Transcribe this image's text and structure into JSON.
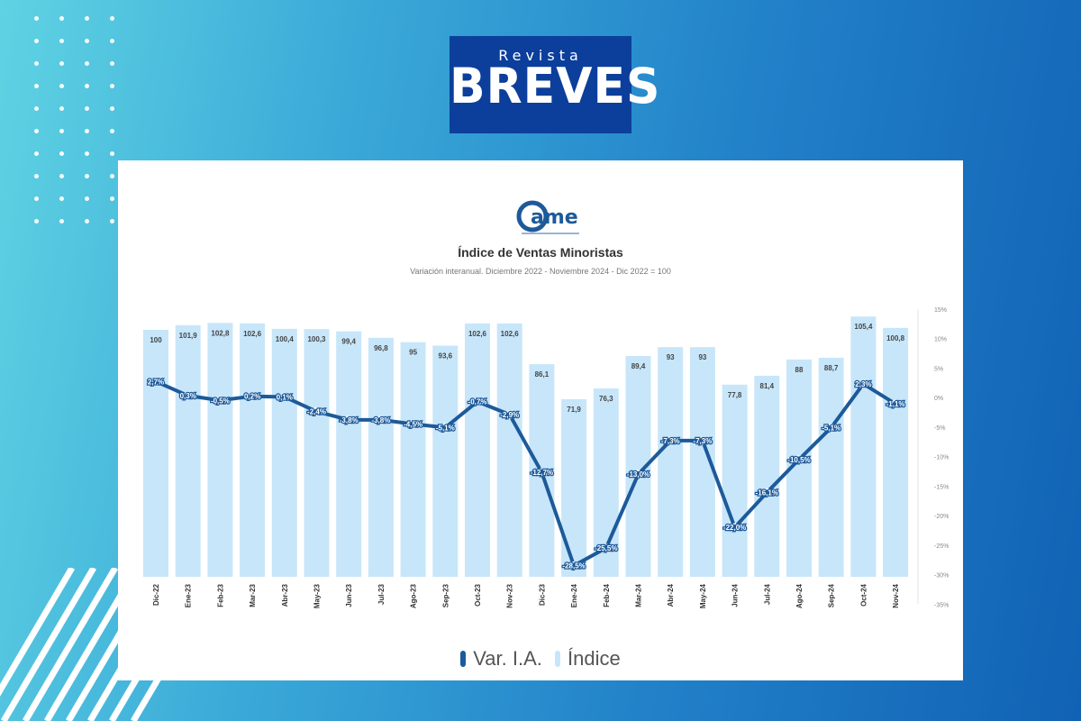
{
  "brand": {
    "small": "Revista",
    "big": "BREVES",
    "bg": "#0c3e9b"
  },
  "org_logo": {
    "text": "ame",
    "color": "#1d5a9a"
  },
  "chart_data": {
    "type": "bar+line",
    "title": "Índice de Ventas Minoristas",
    "subtitle": "Variación interanual. Diciembre 2022 - Noviembre 2024 - Dic 2022 = 100",
    "categories": [
      "Dic-22",
      "Ene-23",
      "Feb-23",
      "Mar-23",
      "Abr-23",
      "May-23",
      "Jun-23",
      "Jul-23",
      "Ago-23",
      "Sep-23",
      "Oct-23",
      "Nov-23",
      "Dic-23",
      "Ene-24",
      "Feb-24",
      "Mar-24",
      "Abr-24",
      "May-24",
      "Jun-24",
      "Jul-24",
      "Ago-24",
      "Sep-24",
      "Oct-24",
      "Nov-24"
    ],
    "series": [
      {
        "name": "Índice",
        "kind": "bar",
        "color": "#c7e6fa",
        "values": [
          100,
          101.9,
          102.8,
          102.6,
          100.4,
          100.3,
          99.4,
          96.8,
          95,
          93.6,
          102.6,
          102.6,
          86.1,
          71.9,
          76.3,
          89.4,
          93,
          93,
          77.8,
          81.4,
          88,
          88.7,
          105.4,
          100.8
        ],
        "labels": [
          "100",
          "101,9",
          "102,8",
          "102,6",
          "100,4",
          "100,3",
          "99,4",
          "96,8",
          "95",
          "93,6",
          "102,6",
          "102,6",
          "86,1",
          "71,9",
          "76,3",
          "89,4",
          "93",
          "93",
          "77,8",
          "81,4",
          "88",
          "88,7",
          "105,4",
          "100,8"
        ]
      },
      {
        "name": "Var. I.A.",
        "kind": "line",
        "color": "#1d5a9a",
        "values": [
          2.7,
          0.3,
          -0.5,
          0.2,
          0.1,
          -2.4,
          -3.8,
          -3.8,
          -4.5,
          -5.1,
          -0.7,
          -2.9,
          -12.7,
          -28.5,
          -25.5,
          -13.0,
          -7.3,
          -7.3,
          -22.0,
          -16.1,
          -10.5,
          -5.1,
          2.3,
          -1.1
        ],
        "labels": [
          "2,7%",
          "0,3%",
          "-0,5%",
          "0,2%",
          "0,1%",
          "-2,4%",
          "-3,8%",
          "-3,8%",
          "-4,5%",
          "-5,1%",
          "-0,7%",
          "-2,9%",
          "-12,7%",
          "-28,5%",
          "-25,5%",
          "-13,0%",
          "-7,3%",
          "-7,3%",
          "-22,0%",
          "-16,1%",
          "-10,5%",
          "-5,1%",
          "2,3%",
          "-1,1%"
        ]
      }
    ],
    "y_right": {
      "min": -30,
      "max": 15,
      "ticks": [
        15,
        10,
        5,
        0,
        -5,
        -10,
        -15,
        -20,
        -25,
        -30,
        -35
      ],
      "tick_labels": [
        "15%",
        "10%",
        "5%",
        "0%",
        "-5%",
        "-10%",
        "-15%",
        "-20%",
        "-25%",
        "-30%",
        "-35%"
      ]
    },
    "legend": [
      "Var. I.A.",
      "Índice"
    ],
    "legend_position": "bottom"
  }
}
